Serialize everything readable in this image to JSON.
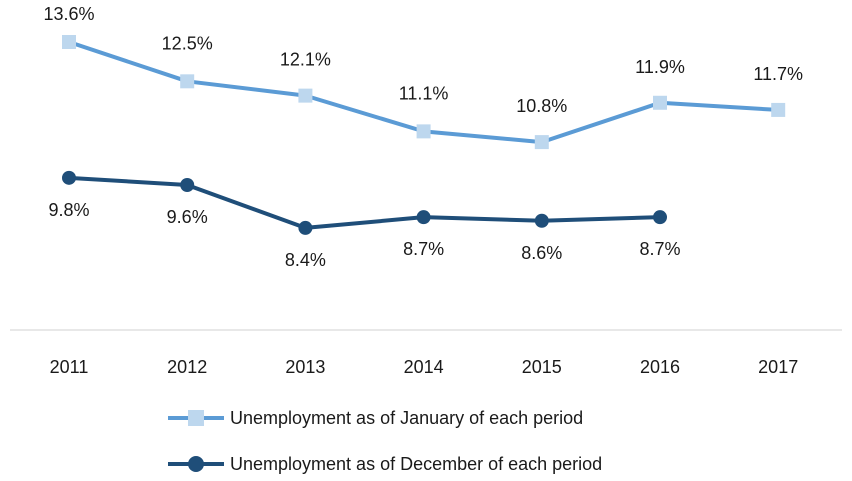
{
  "chart_data": {
    "type": "line",
    "categories": [
      "2011",
      "2012",
      "2013",
      "2014",
      "2015",
      "2016",
      "2017"
    ],
    "series": [
      {
        "name": "Unemployment as of January of each period",
        "values": [
          13.6,
          12.5,
          12.1,
          11.1,
          10.8,
          11.9,
          11.7
        ],
        "labels": [
          "13.6%",
          "12.5%",
          "12.1%",
          "11.1%",
          "10.8%",
          "11.9%",
          "11.7%"
        ],
        "color": "#5b9bd5",
        "marker_color": "#bdd7ee",
        "marker": "square"
      },
      {
        "name": "Unemployment as of December of each period",
        "values": [
          9.8,
          9.6,
          8.4,
          8.7,
          8.6,
          8.7,
          null
        ],
        "labels": [
          "9.8%",
          "9.6%",
          "8.4%",
          "8.7%",
          "8.6%",
          "8.7%",
          null
        ],
        "color": "#1f4e79",
        "marker_color": "#1f4e79",
        "marker": "circle"
      }
    ],
    "title": "",
    "xlabel": "",
    "ylabel": "",
    "y_axis_visible": false,
    "grid": false,
    "legend_position": "bottom"
  }
}
